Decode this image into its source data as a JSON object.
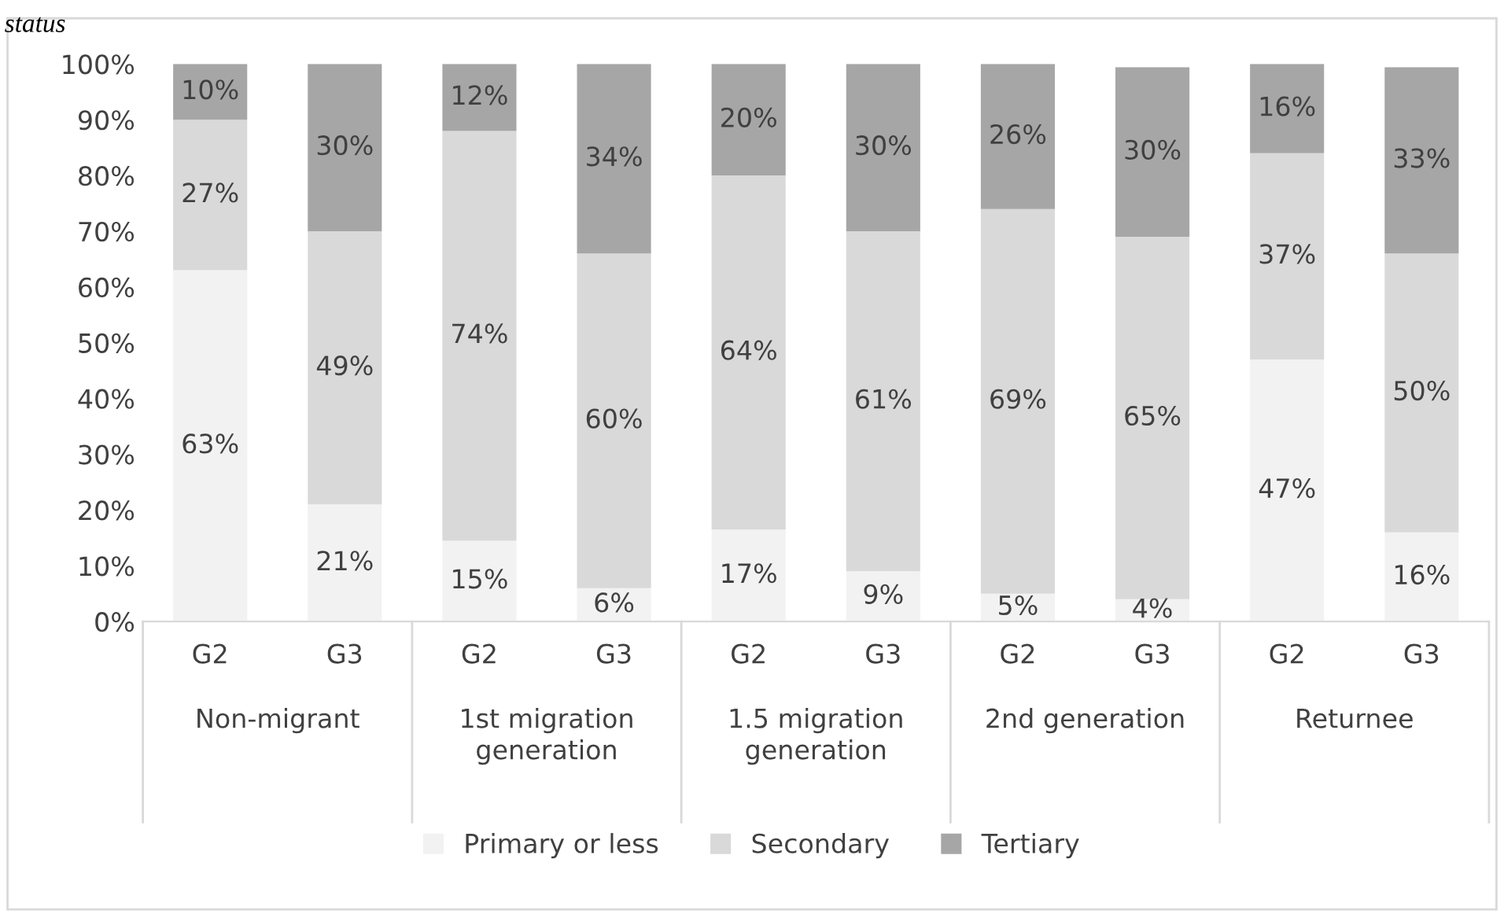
{
  "chart_data": {
    "type": "bar",
    "stacked": true,
    "title": "status",
    "categories": [
      "G2",
      "G3",
      "G2",
      "G3",
      "G2",
      "G3",
      "G2",
      "G3",
      "G2",
      "G3"
    ],
    "annotations": [
      "Non-migrant",
      "1st migration\ngeneration",
      "1.5 migration\ngeneration",
      "2nd generation",
      "Returnee"
    ],
    "series": [
      {
        "name": "Primary or less",
        "color": "#f2f2f2",
        "values": [
          63,
          21,
          14.5,
          6,
          16.5,
          9,
          5,
          4,
          47,
          16
        ],
        "value_labels": [
          "63%",
          "21%",
          "15%",
          "6%",
          "17%",
          "9%",
          "5%",
          "4%",
          "47%",
          "16%"
        ]
      },
      {
        "name": "Secondary",
        "color": "#d9d9d9",
        "values": [
          27,
          49,
          73.5,
          60,
          63.5,
          61,
          69,
          65,
          37,
          50
        ],
        "value_labels": [
          "27%",
          "49%",
          "74%",
          "60%",
          "64%",
          "61%",
          "69%",
          "65%",
          "37%",
          "50%"
        ]
      },
      {
        "name": "Tertiary",
        "color": "#a6a6a6",
        "values": [
          10,
          30,
          12,
          34,
          20,
          30,
          26,
          30.4,
          16,
          33.4
        ],
        "value_labels": [
          "10%",
          "30%",
          "12%",
          "34%",
          "20%",
          "30%",
          "26%",
          "30%",
          "16%",
          "33%"
        ]
      }
    ],
    "ylim": [
      0,
      100
    ],
    "yticks": [
      {
        "value": 0,
        "label": "0%"
      },
      {
        "value": 10,
        "label": "10%"
      },
      {
        "value": 20,
        "label": "20%"
      },
      {
        "value": 30,
        "label": "30%"
      },
      {
        "value": 40,
        "label": "40%"
      },
      {
        "value": 50,
        "label": "50%"
      },
      {
        "value": 60,
        "label": "60%"
      },
      {
        "value": 70,
        "label": "70%"
      },
      {
        "value": 80,
        "label": "80%"
      },
      {
        "value": 90,
        "label": "90%"
      },
      {
        "value": 100,
        "label": "100%"
      }
    ],
    "grid": false,
    "legend": "bottom"
  }
}
